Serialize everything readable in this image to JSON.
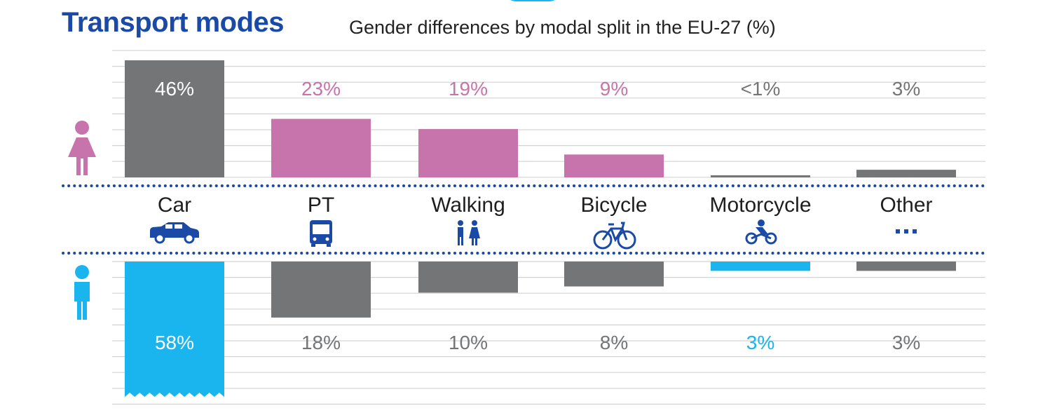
{
  "header": {
    "title": "Transport modes",
    "subtitle": "Gender differences by modal split in the EU-27 (%)"
  },
  "colors": {
    "women": "#c874ac",
    "men": "#1ab4ef",
    "neutral": "#737577",
    "women_label_gray": "#ffffff",
    "grid": "#d3d3d3",
    "divider": "#1a4aa6",
    "icon": "#1a4aa6"
  },
  "chart_data": {
    "type": "bar",
    "title": "Transport modes",
    "subtitle": "Gender differences by modal split in the EU-27 (%)",
    "categories": [
      "Car",
      "PT",
      "Walking",
      "Bicycle",
      "Motorcycle",
      "Other"
    ],
    "category_icons": [
      "car-icon",
      "bus-icon",
      "pedestrians-icon",
      "bicycle-icon",
      "motorcyclist-icon",
      "ellipsis-icon"
    ],
    "series": [
      {
        "icon": "woman-icon",
        "values": [
          46,
          23,
          19,
          9,
          0.5,
          3
        ],
        "labels": [
          "46%",
          "23%",
          "19%",
          "9%",
          "<1%",
          "3%"
        ],
        "highlight": [
          false,
          true,
          true,
          true,
          false,
          false
        ],
        "direction": "up"
      },
      {
        "icon": "man-icon",
        "values": [
          58,
          18,
          10,
          8,
          3,
          3
        ],
        "labels": [
          "58%",
          "18%",
          "10%",
          "8%",
          "3%",
          "3%"
        ],
        "highlight": [
          true,
          false,
          false,
          false,
          true,
          false
        ],
        "direction": "down",
        "truncated": [
          true,
          false,
          false,
          false,
          false,
          false
        ]
      }
    ],
    "grid": true
  }
}
